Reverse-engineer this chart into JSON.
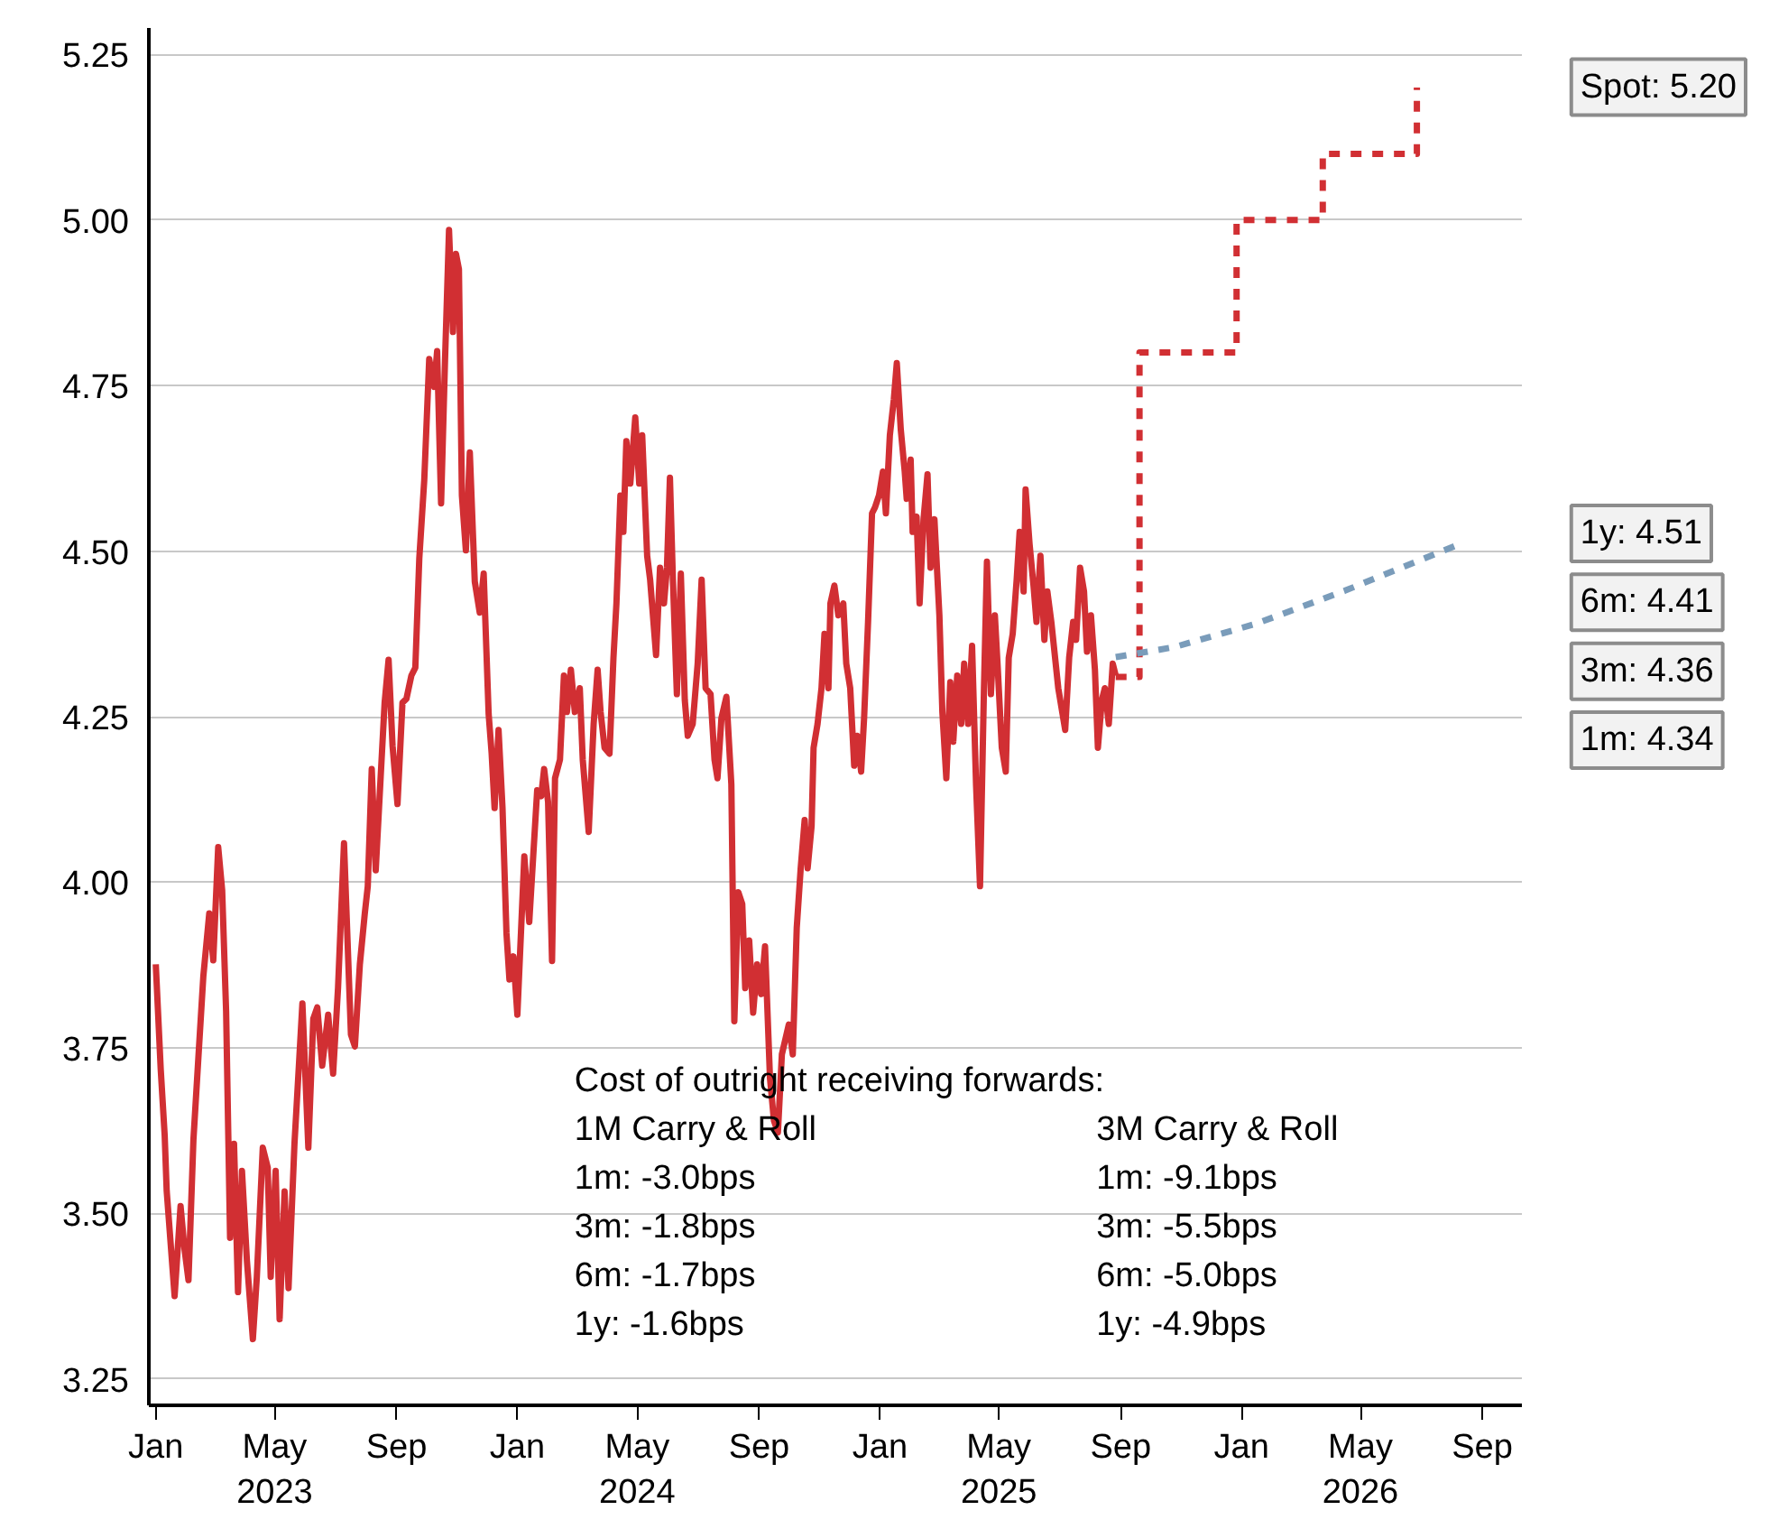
{
  "chart_data": {
    "type": "line",
    "xlim": [
      "2022-12-25",
      "2026-10-11"
    ],
    "ylim": [
      3.21,
      5.29
    ],
    "xticks": [
      {
        "value": "2023-01-01",
        "label": "Jan"
      },
      {
        "value": "2023-05-01",
        "label": "May\n2023"
      },
      {
        "value": "2023-09-01",
        "label": "Sep"
      },
      {
        "value": "2024-01-01",
        "label": "Jan"
      },
      {
        "value": "2024-05-01",
        "label": "May\n2024"
      },
      {
        "value": "2024-09-01",
        "label": "Sep"
      },
      {
        "value": "2025-01-01",
        "label": "Jan"
      },
      {
        "value": "2025-05-01",
        "label": "May\n2025"
      },
      {
        "value": "2025-09-01",
        "label": "Sep"
      },
      {
        "value": "2026-01-01",
        "label": "Jan"
      },
      {
        "value": "2026-05-01",
        "label": "May\n2026"
      },
      {
        "value": "2026-09-01",
        "label": "Sep"
      }
    ],
    "yticks": [
      {
        "value": 3.25,
        "label": "3.25"
      },
      {
        "value": 3.5,
        "label": "3.50"
      },
      {
        "value": 3.75,
        "label": "3.75"
      },
      {
        "value": 4.0,
        "label": "4.00"
      },
      {
        "value": 4.25,
        "label": "4.25"
      },
      {
        "value": 4.5,
        "label": "4.50"
      },
      {
        "value": 4.75,
        "label": "4.75"
      },
      {
        "value": 5.0,
        "label": "5.00"
      },
      {
        "value": 5.25,
        "label": "5.25"
      }
    ],
    "grid": "y",
    "marker": "none",
    "series": [
      {
        "color": "#d12f33",
        "line_style": "solid",
        "x": [
          "2023-01-01",
          "2023-01-06",
          "2023-01-10",
          "2023-01-12",
          "2023-01-20",
          "2023-01-26",
          "2023-01-30",
          "2023-02-03",
          "2023-02-08",
          "2023-02-13",
          "2023-02-18",
          "2023-02-24",
          "2023-02-28",
          "2023-03-05",
          "2023-03-09",
          "2023-03-13",
          "2023-03-17",
          "2023-03-21",
          "2023-03-25",
          "2023-03-29",
          "2023-04-03",
          "2023-04-09",
          "2023-04-13",
          "2023-04-19",
          "2023-04-24",
          "2023-04-27",
          "2023-05-02",
          "2023-05-06",
          "2023-05-11",
          "2023-05-15",
          "2023-05-21",
          "2023-05-25",
          "2023-05-29",
          "2023-06-04",
          "2023-06-09",
          "2023-06-13",
          "2023-06-18",
          "2023-06-24",
          "2023-06-29",
          "2023-07-04",
          "2023-07-10",
          "2023-07-17",
          "2023-07-21",
          "2023-07-26",
          "2023-07-31",
          "2023-08-03",
          "2023-08-07",
          "2023-08-11",
          "2023-08-16",
          "2023-08-20",
          "2023-08-24",
          "2023-08-28",
          "2023-09-02",
          "2023-09-07",
          "2023-09-11",
          "2023-09-16",
          "2023-09-20",
          "2023-09-24",
          "2023-09-29",
          "2023-10-04",
          "2023-10-09",
          "2023-10-12",
          "2023-10-16",
          "2023-10-20",
          "2023-10-24",
          "2023-10-28",
          "2023-10-31",
          "2023-11-03",
          "2023-11-06",
          "2023-11-10",
          "2023-11-14",
          "2023-11-19",
          "2023-11-24",
          "2023-11-28",
          "2023-12-03",
          "2023-12-06",
          "2023-12-09",
          "2023-12-13",
          "2023-12-17",
          "2023-12-21",
          "2023-12-24",
          "2023-12-28",
          "2024-01-01",
          "2024-01-08",
          "2024-01-13",
          "2024-01-21",
          "2024-01-25",
          "2024-01-28",
          "2024-02-01",
          "2024-02-05",
          "2024-02-08",
          "2024-02-13",
          "2024-02-17",
          "2024-02-20",
          "2024-02-24",
          "2024-02-28",
          "2024-03-04",
          "2024-03-07",
          "2024-03-13",
          "2024-03-18",
          "2024-03-22",
          "2024-03-25",
          "2024-03-29",
          "2024-04-03",
          "2024-04-07",
          "2024-04-10",
          "2024-04-14",
          "2024-04-17",
          "2024-04-20",
          "2024-04-24",
          "2024-04-29",
          "2024-05-03",
          "2024-05-06",
          "2024-05-11",
          "2024-05-14",
          "2024-05-20",
          "2024-05-24",
          "2024-05-28",
          "2024-05-31",
          "2024-06-03",
          "2024-06-06",
          "2024-06-10",
          "2024-06-14",
          "2024-06-18",
          "2024-06-21",
          "2024-06-26",
          "2024-07-01",
          "2024-07-05",
          "2024-07-09",
          "2024-07-14",
          "2024-07-18",
          "2024-07-21",
          "2024-07-25",
          "2024-07-30",
          "2024-08-04",
          "2024-08-07",
          "2024-08-11",
          "2024-08-15",
          "2024-08-18",
          "2024-08-22",
          "2024-08-26",
          "2024-08-30",
          "2024-09-03",
          "2024-09-07",
          "2024-09-12",
          "2024-09-16",
          "2024-09-20",
          "2024-09-24",
          "2024-10-01",
          "2024-10-05",
          "2024-10-09",
          "2024-10-13",
          "2024-10-17",
          "2024-10-20",
          "2024-10-24",
          "2024-10-26",
          "2024-10-30",
          "2024-11-03",
          "2024-11-06",
          "2024-11-10",
          "2024-11-12",
          "2024-11-16",
          "2024-11-20",
          "2024-11-25",
          "2024-11-28",
          "2024-12-02",
          "2024-12-06",
          "2024-12-09",
          "2024-12-13",
          "2024-12-16",
          "2024-12-20",
          "2024-12-24",
          "2024-12-27",
          "2024-12-31",
          "2025-01-04",
          "2025-01-07",
          "2025-01-11",
          "2025-01-15",
          "2025-01-18",
          "2025-01-22",
          "2025-01-26",
          "2025-01-28",
          "2025-02-01",
          "2025-02-03",
          "2025-02-07",
          "2025-02-10",
          "2025-02-14",
          "2025-02-18",
          "2025-02-21",
          "2025-02-25",
          "2025-03-02",
          "2025-03-05",
          "2025-03-09",
          "2025-03-13",
          "2025-03-16",
          "2025-03-20",
          "2025-03-24",
          "2025-03-27",
          "2025-03-31",
          "2025-04-04",
          "2025-04-08",
          "2025-04-12",
          "2025-04-16",
          "2025-04-19",
          "2025-04-23",
          "2025-04-27",
          "2025-04-30",
          "2025-05-04",
          "2025-05-08",
          "2025-05-11",
          "2025-05-15",
          "2025-05-19",
          "2025-05-22",
          "2025-05-26",
          "2025-05-28",
          "2025-06-01",
          "2025-06-05",
          "2025-06-08",
          "2025-06-12",
          "2025-06-16",
          "2025-06-19",
          "2025-06-23",
          "2025-06-30",
          "2025-07-04",
          "2025-07-07",
          "2025-07-11",
          "2025-07-15",
          "2025-07-18",
          "2025-07-22",
          "2025-07-26",
          "2025-07-29",
          "2025-08-02",
          "2025-08-06",
          "2025-08-09",
          "2025-08-13",
          "2025-08-16",
          "2025-08-20",
          "2025-08-24",
          "2025-08-27"
        ],
        "values": [
          3.876,
          3.717,
          3.617,
          3.534,
          3.375,
          3.511,
          3.446,
          3.399,
          3.611,
          3.735,
          3.858,
          3.953,
          3.882,
          4.053,
          3.988,
          3.805,
          3.463,
          3.605,
          3.381,
          3.564,
          3.428,
          3.31,
          3.404,
          3.599,
          3.569,
          3.404,
          3.564,
          3.34,
          3.533,
          3.387,
          3.605,
          3.711,
          3.817,
          3.599,
          3.794,
          3.811,
          3.723,
          3.8,
          3.711,
          3.841,
          4.059,
          3.77,
          3.752,
          3.876,
          3.953,
          3.994,
          4.171,
          4.018,
          4.159,
          4.271,
          4.336,
          4.206,
          4.118,
          4.271,
          4.277,
          4.312,
          4.324,
          4.489,
          4.607,
          4.79,
          4.748,
          4.802,
          4.572,
          4.79,
          4.985,
          4.831,
          4.949,
          4.926,
          4.584,
          4.501,
          4.649,
          4.454,
          4.407,
          4.466,
          4.254,
          4.195,
          4.112,
          4.23,
          4.112,
          3.923,
          3.853,
          3.888,
          3.8,
          4.039,
          3.94,
          4.139,
          4.13,
          4.171,
          4.121,
          3.881,
          4.157,
          4.185,
          4.312,
          4.257,
          4.321,
          4.257,
          4.293,
          4.185,
          4.076,
          4.239,
          4.321,
          4.257,
          4.203,
          4.194,
          4.339,
          4.421,
          4.584,
          4.529,
          4.666,
          4.602,
          4.702,
          4.602,
          4.675,
          4.493,
          4.457,
          4.343,
          4.475,
          4.421,
          4.475,
          4.611,
          4.457,
          4.284,
          4.466,
          4.275,
          4.221,
          4.239,
          4.33,
          4.457,
          4.293,
          4.284,
          4.185,
          4.157,
          4.248,
          4.28,
          4.148,
          3.79,
          3.985,
          3.967,
          3.84,
          3.912,
          3.803,
          3.876,
          3.831,
          3.903,
          3.704,
          3.64,
          3.622,
          3.74,
          3.785,
          3.74,
          3.931,
          4.021,
          4.094,
          4.021,
          4.085,
          4.203,
          4.239,
          4.293,
          4.375,
          4.293,
          4.421,
          4.448,
          4.403,
          4.421,
          4.33,
          4.293,
          4.176,
          4.221,
          4.167,
          4.248,
          4.393,
          4.557,
          4.566,
          4.584,
          4.62,
          4.557,
          4.675,
          4.729,
          4.784,
          4.684,
          4.62,
          4.579,
          4.638,
          4.529,
          4.552,
          4.421,
          4.548,
          4.616,
          4.475,
          4.548,
          4.403,
          4.257,
          4.157,
          4.302,
          4.212,
          4.312,
          4.239,
          4.33,
          4.239,
          4.357,
          4.148,
          3.994,
          4.293,
          4.484,
          4.284,
          4.403,
          4.321,
          4.203,
          4.167,
          4.339,
          4.375,
          4.457,
          4.529,
          4.439,
          4.593,
          4.511,
          4.448,
          4.393,
          4.493,
          4.366,
          4.439,
          4.393,
          4.293,
          4.257,
          4.23,
          4.339,
          4.393,
          4.366,
          4.475,
          4.439,
          4.348,
          4.403,
          4.321,
          4.203,
          4.275,
          4.293,
          4.239,
          4.33,
          4.312
        ]
      },
      {
        "type": "step",
        "color": "#d12f33",
        "line_style": "dashed",
        "x": [
          "2025-08-27",
          "2025-09-20",
          "2025-12-27",
          "2026-03-24",
          "2026-06-27"
        ],
        "values": [
          4.31,
          4.8,
          5.0,
          5.1,
          5.2
        ]
      },
      {
        "type": "line",
        "color": "#7a9cba",
        "line_style": "dashed",
        "x": [
          "2025-08-27",
          "2025-10-25",
          "2026-01-15",
          "2026-04-15",
          "2026-08-08"
        ],
        "values": [
          4.34,
          4.355,
          4.39,
          4.44,
          4.51
        ]
      }
    ],
    "annotations": [
      "Cost of outright receiving forwards:",
      "1M Carry & Roll",
      "1m: -3.0bps",
      "3m: -1.8bps",
      "6m: -1.7bps",
      "1y: -1.6bps",
      "3M Carry & Roll",
      "1m: -9.1bps",
      "3m: -5.5bps",
      "6m: -5.0bps",
      "1y: -4.9bps",
      "Spot: 5.20",
      "1y: 4.51",
      "6m: 4.41",
      "3m: 4.36",
      "1m: 4.34"
    ]
  }
}
